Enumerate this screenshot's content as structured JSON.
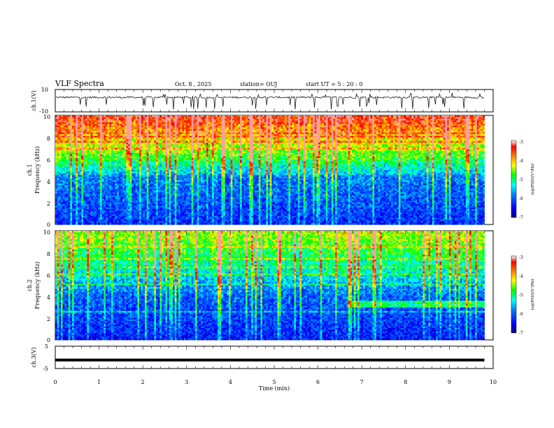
{
  "header": {
    "title": "VLF Spectra",
    "date": "Oct. 8 , 2025",
    "station": "station= OUJ",
    "start": "start  UT =  5 : 20 : 0"
  },
  "chart_data": [
    {
      "type": "line",
      "ylabel": "ch.1(V)",
      "ylim": [
        -10,
        10
      ],
      "yticks": [
        "10",
        "-10"
      ],
      "note": "waveform roughly flat near +3 V with frequent negative spikes"
    },
    {
      "type": "heatmap",
      "ylabel": "Frequency (kHz)",
      "channel": "ch.1",
      "ylim": [
        0,
        10
      ],
      "yticks": [
        "0",
        "2",
        "4",
        "6",
        "8",
        "10"
      ],
      "xlim": [
        0,
        9.8
      ],
      "colorbar": {
        "label": "log(PSD)(V²/Hz)",
        "range": [
          -7,
          -3
        ],
        "ticks": [
          "-3",
          "-4",
          "-5",
          "-6",
          "-7"
        ]
      }
    },
    {
      "type": "heatmap",
      "ylabel": "Frequency (kHz)",
      "channel": "ch.2",
      "ylim": [
        0,
        10
      ],
      "yticks": [
        "0",
        "2",
        "4",
        "6",
        "8",
        "10"
      ],
      "xlim": [
        0,
        9.8
      ],
      "colorbar": {
        "label": "log(PSD)(V²/Hz)",
        "range": [
          -7,
          -3
        ],
        "ticks": [
          "-3",
          "-4",
          "-5",
          "-6",
          "-7"
        ]
      }
    },
    {
      "type": "line",
      "ylabel": "ch.3(V)",
      "ylim": [
        -5,
        5
      ],
      "yticks": [
        "5",
        "-5"
      ],
      "values": [
        -1.2
      ],
      "note": "constant level throughout"
    }
  ],
  "x_axis": {
    "label": "Time (min)",
    "range": [
      0,
      10
    ],
    "ticks": [
      "0",
      "1",
      "2",
      "3",
      "4",
      "5",
      "6",
      "7",
      "8",
      "9",
      "10"
    ]
  },
  "colors": {
    "scale": [
      "#00007f",
      "#0000ff",
      "#0080ff",
      "#00ffff",
      "#00ff00",
      "#ffff00",
      "#ff8000",
      "#ff0000",
      "#ffffff"
    ]
  }
}
